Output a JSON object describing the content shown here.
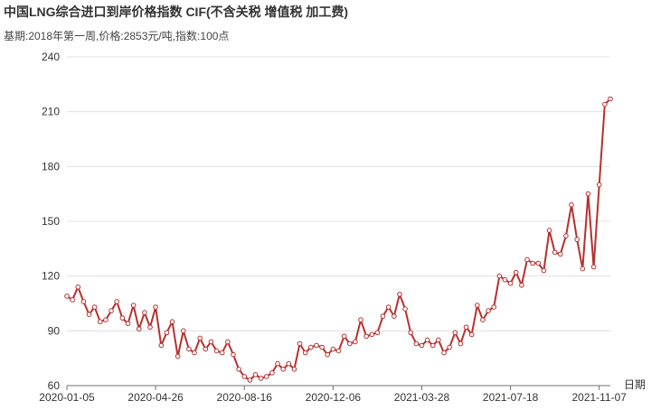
{
  "chart_data": {
    "type": "line",
    "title": "中国LNG综合进口到岸价格指数  CIF(不含关税  增值税 加工费)",
    "subtitle": "基期:2018年第一周,价格:2853元/吨,指数:100点",
    "xlabel": "日期",
    "ylabel": "",
    "ylim": [
      60,
      240
    ],
    "yticks": [
      60,
      90,
      120,
      150,
      180,
      210,
      240
    ],
    "x_tick_labels": [
      "2020-01-05",
      "2020-04-26",
      "2020-08-16",
      "2020-12-06",
      "2021-03-28",
      "2021-07-18",
      "2021-11-07"
    ],
    "grid": true,
    "legend": "none",
    "colors": {
      "line": "#b5312f",
      "grid": "#e0e0e0",
      "axis": "#6e7079"
    },
    "series": [
      {
        "values": [
          109,
          107,
          114,
          106,
          99,
          103,
          95,
          96,
          101,
          106,
          97,
          94,
          104,
          91,
          100,
          92,
          103,
          82,
          89,
          95,
          76,
          90,
          80,
          78,
          86,
          80,
          84,
          79,
          78,
          84,
          77,
          69,
          65,
          63,
          66,
          64,
          65,
          67,
          72,
          69,
          72,
          69,
          83,
          78,
          81,
          82,
          81,
          77,
          80,
          79,
          87,
          83,
          84,
          96,
          87,
          88,
          89,
          98,
          103,
          98,
          110,
          102,
          89,
          83,
          82,
          85,
          82,
          85,
          78,
          81,
          89,
          83,
          92,
          88,
          104,
          96,
          101,
          103,
          120,
          118,
          116,
          122,
          115,
          129,
          127,
          127,
          123,
          145,
          133,
          132,
          142,
          159,
          140,
          124,
          165,
          125,
          170,
          214,
          217
        ]
      }
    ]
  }
}
